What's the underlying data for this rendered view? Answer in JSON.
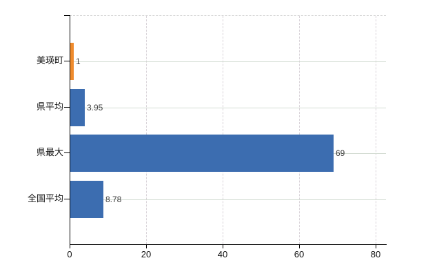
{
  "chart_data": {
    "type": "bar",
    "orientation": "horizontal",
    "categories": [
      "美瑛町",
      "県平均",
      "県最大",
      "全国平均"
    ],
    "values": [
      1,
      3.95,
      69,
      8.78
    ],
    "value_labels": [
      "1",
      "3.95",
      "69",
      "8.78"
    ],
    "series": [
      {
        "name": "value",
        "values": [
          1,
          3.95,
          69,
          8.78
        ]
      }
    ],
    "bar_colors": [
      "#ef8b2d",
      "#3c6db0",
      "#3c6db0",
      "#3c6db0"
    ],
    "x_ticks": [
      0,
      20,
      40,
      60,
      80
    ],
    "x_tick_labels": [
      "0",
      "20",
      "40",
      "60",
      "80"
    ],
    "xlim": [
      0,
      82.7
    ],
    "grid": {
      "vertical": "dashed",
      "horizontal": "solid-at-category-centers"
    },
    "legend": "none",
    "title": ""
  }
}
